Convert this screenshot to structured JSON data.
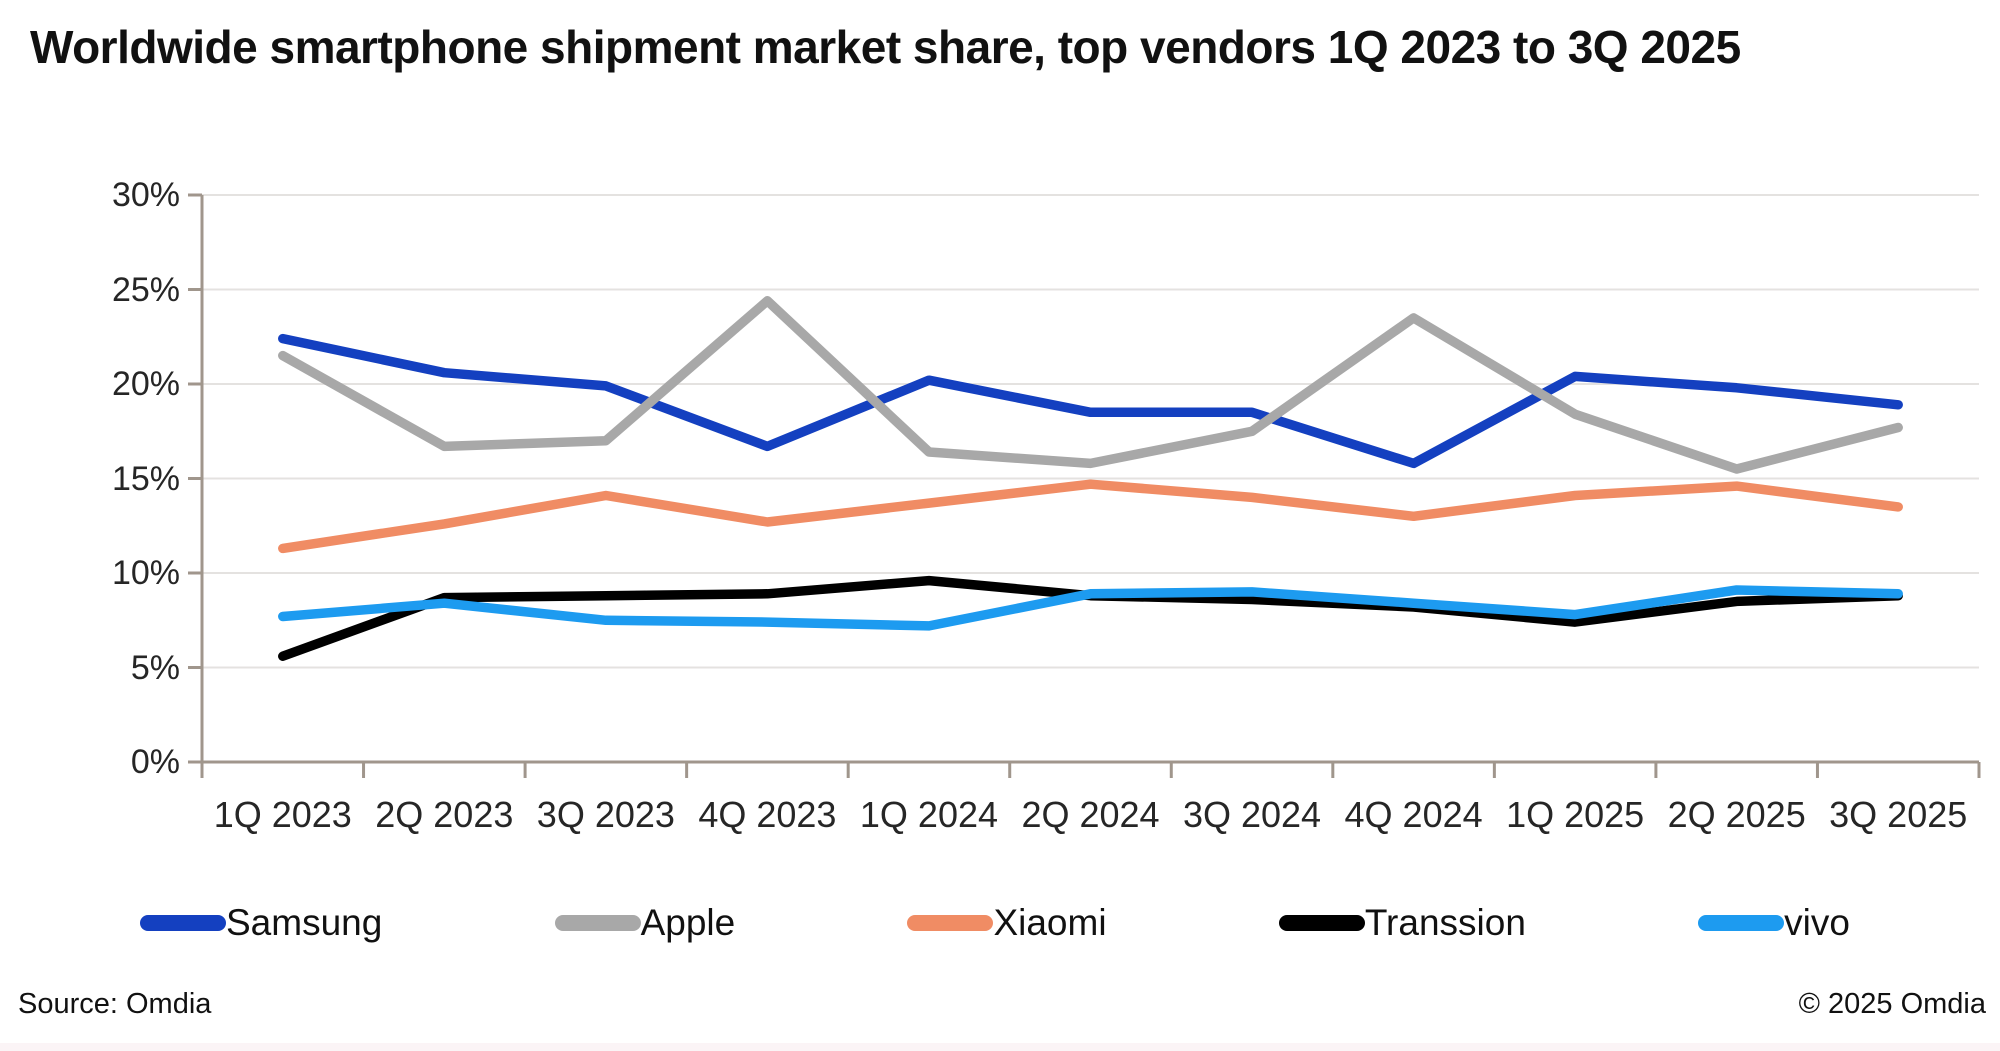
{
  "title": "Worldwide smartphone shipment market share, top vendors 1Q 2023 to 3Q 2025",
  "footer": {
    "source": "Source: Omdia",
    "copyright": "© 2025 Omdia"
  },
  "chart_data": {
    "type": "line",
    "title": "Worldwide smartphone shipment market share, top vendors 1Q 2023 to 3Q 2025",
    "categories": [
      "1Q 2023",
      "2Q 2023",
      "3Q 2023",
      "4Q 2023",
      "1Q 2024",
      "2Q 2024",
      "3Q 2024",
      "4Q 2024",
      "1Q 2025",
      "2Q 2025",
      "3Q 2025"
    ],
    "series": [
      {
        "name": "Samsung",
        "color": "#1440c0",
        "values": [
          22.4,
          20.6,
          19.9,
          16.7,
          20.2,
          18.5,
          18.5,
          15.8,
          20.4,
          19.8,
          18.9
        ]
      },
      {
        "name": "Apple",
        "color": "#a8a8a8",
        "values": [
          21.5,
          16.7,
          17.0,
          24.4,
          16.4,
          15.8,
          17.5,
          23.5,
          18.4,
          15.5,
          17.7
        ]
      },
      {
        "name": "Xiaomi",
        "color": "#f08c64",
        "values": [
          11.3,
          12.6,
          14.1,
          12.7,
          13.7,
          14.7,
          14.0,
          13.0,
          14.1,
          14.6,
          13.5
        ]
      },
      {
        "name": "Transsion",
        "color": "#000000",
        "values": [
          5.6,
          8.7,
          8.8,
          8.9,
          9.6,
          8.8,
          8.6,
          8.2,
          7.4,
          8.5,
          8.8
        ]
      },
      {
        "name": "vivo",
        "color": "#1d9bf0",
        "values": [
          7.7,
          8.4,
          7.5,
          7.4,
          7.2,
          8.9,
          9.0,
          8.4,
          7.8,
          9.1,
          8.9
        ]
      }
    ],
    "xlabel": "",
    "ylabel": "",
    "ylim": [
      0,
      30
    ],
    "y_tick_labels": [
      "0%",
      "5%",
      "10%",
      "15%",
      "20%",
      "25%",
      "30%"
    ],
    "y_tick_values": [
      0,
      5,
      10,
      15,
      20,
      25,
      30
    ],
    "grid": true,
    "legend_position": "bottom",
    "axis_color": "#a0968c",
    "gridline_color": "#e4e2e0"
  }
}
